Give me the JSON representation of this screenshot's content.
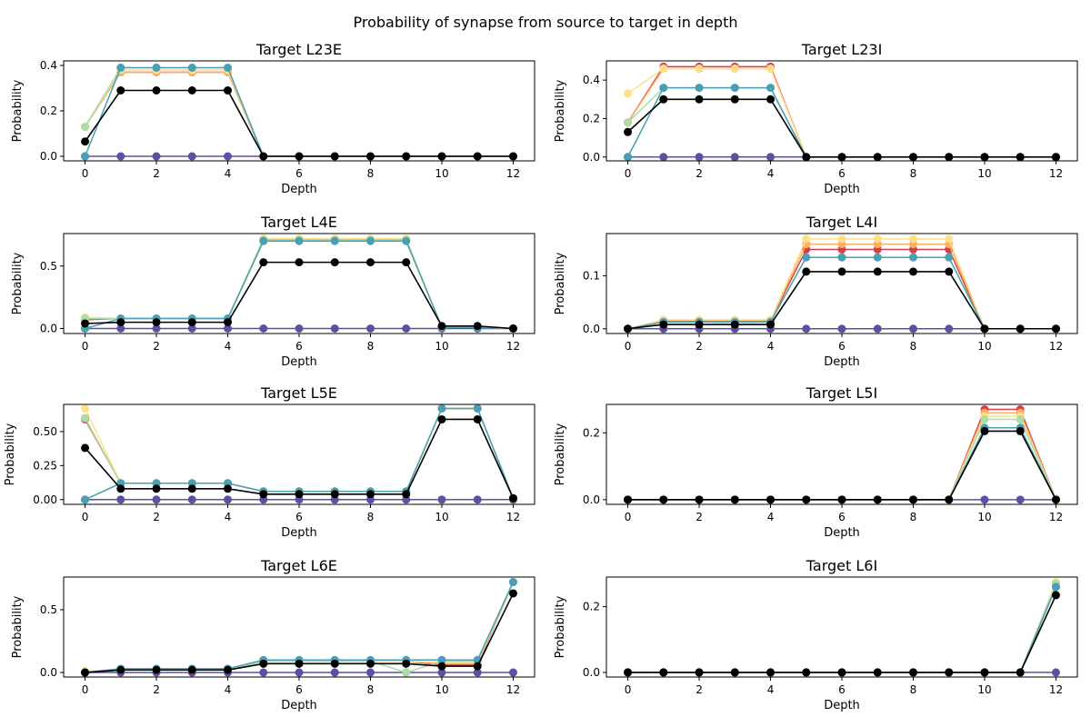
{
  "figure": {
    "title": "Probability of synapse from source to target in depth"
  },
  "colors": {
    "series": [
      "#5e4fa2",
      "#d53e4f",
      "#fdae61",
      "#fee08b",
      "#abdda4",
      "#4a9fb5",
      "#000000"
    ],
    "background": "#ffffff"
  },
  "chart_data": [
    {
      "type": "line",
      "title": "Target L23E",
      "xlabel": "Depth",
      "ylabel": "Probability",
      "x": [
        0,
        1,
        2,
        3,
        4,
        5,
        6,
        7,
        8,
        9,
        10,
        11,
        12
      ],
      "xticks": [
        "0",
        "2",
        "4",
        "6",
        "8",
        "10",
        "12"
      ],
      "ylim": [
        -0.02,
        0.42
      ],
      "yticks": [
        "0.0",
        "0.2",
        "0.4"
      ],
      "series": [
        {
          "values": [
            0,
            0,
            0,
            0,
            0,
            0,
            0,
            0,
            0,
            0,
            0,
            0,
            0
          ]
        },
        {
          "values": [
            0.13,
            0.37,
            0.37,
            0.37,
            0.37,
            0,
            0,
            0,
            0,
            0,
            0,
            0,
            0
          ]
        },
        {
          "values": [
            0.13,
            0.37,
            0.37,
            0.37,
            0.37,
            0,
            0,
            0,
            0,
            0,
            0,
            0,
            0
          ]
        },
        {
          "values": [
            0.13,
            0.38,
            0.38,
            0.38,
            0.38,
            0,
            0,
            0,
            0,
            0,
            0,
            0,
            0
          ]
        },
        {
          "values": [
            0.13,
            0.39,
            0.39,
            0.39,
            0.39,
            0,
            0,
            0,
            0,
            0,
            0,
            0,
            0
          ]
        },
        {
          "values": [
            0,
            0.39,
            0.39,
            0.39,
            0.39,
            0,
            0,
            0,
            0,
            0,
            0,
            0,
            0
          ]
        },
        {
          "values": [
            0.065,
            0.29,
            0.29,
            0.29,
            0.29,
            0,
            0,
            0,
            0,
            0,
            0,
            0,
            0
          ]
        }
      ]
    },
    {
      "type": "line",
      "title": "Target L23I",
      "xlabel": "Depth",
      "ylabel": "Probability",
      "x": [
        0,
        1,
        2,
        3,
        4,
        5,
        6,
        7,
        8,
        9,
        10,
        11,
        12
      ],
      "xticks": [
        "0",
        "2",
        "4",
        "6",
        "8",
        "10",
        "12"
      ],
      "ylim": [
        -0.02,
        0.5
      ],
      "yticks": [
        "0.0",
        "0.2",
        "0.4"
      ],
      "series": [
        {
          "values": [
            0,
            0,
            0,
            0,
            0,
            0,
            0,
            0,
            0,
            0,
            0,
            0,
            0
          ]
        },
        {
          "values": [
            0.18,
            0.47,
            0.47,
            0.47,
            0.47,
            0,
            0,
            0,
            0,
            0,
            0,
            0,
            0
          ]
        },
        {
          "values": [
            0.18,
            0.46,
            0.46,
            0.46,
            0.46,
            0,
            0,
            0,
            0,
            0,
            0,
            0,
            0
          ]
        },
        {
          "values": [
            0.33,
            0.46,
            0.46,
            0.46,
            0.46,
            0,
            0,
            0,
            0,
            0,
            0,
            0,
            0
          ]
        },
        {
          "values": [
            0.18,
            0.36,
            0.36,
            0.36,
            0.36,
            0,
            0,
            0,
            0,
            0,
            0,
            0,
            0
          ]
        },
        {
          "values": [
            0,
            0.36,
            0.36,
            0.36,
            0.36,
            0,
            0,
            0,
            0,
            0,
            0,
            0,
            0
          ]
        },
        {
          "values": [
            0.13,
            0.3,
            0.3,
            0.3,
            0.3,
            0,
            0,
            0,
            0,
            0,
            0,
            0,
            0
          ]
        }
      ]
    },
    {
      "type": "line",
      "title": "Target L4E",
      "xlabel": "Depth",
      "ylabel": "Probability",
      "x": [
        0,
        1,
        2,
        3,
        4,
        5,
        6,
        7,
        8,
        9,
        10,
        11,
        12
      ],
      "xticks": [
        "0",
        "2",
        "4",
        "6",
        "8",
        "10",
        "12"
      ],
      "ylim": [
        -0.04,
        0.76
      ],
      "yticks": [
        "0.0",
        "0.5"
      ],
      "series": [
        {
          "values": [
            0,
            0,
            0,
            0,
            0,
            0,
            0,
            0,
            0,
            0,
            0,
            0,
            0
          ]
        },
        {
          "values": [
            0.07,
            0.08,
            0.08,
            0.08,
            0.08,
            0.71,
            0.71,
            0.71,
            0.71,
            0.71,
            0.01,
            0.01,
            0
          ]
        },
        {
          "values": [
            0.08,
            0.08,
            0.08,
            0.08,
            0.08,
            0.71,
            0.71,
            0.71,
            0.71,
            0.71,
            0.01,
            0.01,
            0
          ]
        },
        {
          "values": [
            0.09,
            0.08,
            0.08,
            0.08,
            0.08,
            0.72,
            0.72,
            0.72,
            0.72,
            0.72,
            0.01,
            0.01,
            0
          ]
        },
        {
          "values": [
            0.08,
            0.08,
            0.08,
            0.08,
            0.08,
            0.71,
            0.71,
            0.71,
            0.71,
            0.71,
            0.01,
            0.01,
            0
          ]
        },
        {
          "values": [
            0,
            0.08,
            0.08,
            0.08,
            0.08,
            0.7,
            0.7,
            0.7,
            0.7,
            0.7,
            0.01,
            0.01,
            0
          ]
        },
        {
          "values": [
            0.04,
            0.05,
            0.05,
            0.05,
            0.05,
            0.53,
            0.53,
            0.53,
            0.53,
            0.53,
            0.02,
            0.02,
            0
          ]
        }
      ]
    },
    {
      "type": "line",
      "title": "Target L4I",
      "xlabel": "Depth",
      "ylabel": "Probability",
      "x": [
        0,
        1,
        2,
        3,
        4,
        5,
        6,
        7,
        8,
        9,
        10,
        11,
        12
      ],
      "xticks": [
        "0",
        "2",
        "4",
        "6",
        "8",
        "10",
        "12"
      ],
      "ylim": [
        -0.009,
        0.18
      ],
      "yticks": [
        "0.0",
        "0.1"
      ],
      "series": [
        {
          "values": [
            0,
            0,
            0,
            0,
            0,
            0,
            0,
            0,
            0,
            0,
            0,
            0,
            0
          ]
        },
        {
          "values": [
            0,
            0.015,
            0.015,
            0.015,
            0.015,
            0.15,
            0.15,
            0.15,
            0.15,
            0.15,
            0,
            0,
            0
          ]
        },
        {
          "values": [
            0,
            0.016,
            0.016,
            0.016,
            0.016,
            0.16,
            0.16,
            0.16,
            0.16,
            0.16,
            0,
            0,
            0
          ]
        },
        {
          "values": [
            0,
            0.017,
            0.017,
            0.017,
            0.017,
            0.17,
            0.17,
            0.17,
            0.17,
            0.17,
            0,
            0,
            0
          ]
        },
        {
          "values": [
            0,
            0.013,
            0.013,
            0.013,
            0.013,
            0.135,
            0.135,
            0.135,
            0.135,
            0.135,
            0,
            0,
            0
          ]
        },
        {
          "values": [
            0,
            0.013,
            0.013,
            0.013,
            0.013,
            0.135,
            0.135,
            0.135,
            0.135,
            0.135,
            0,
            0,
            0
          ]
        },
        {
          "values": [
            0,
            0.008,
            0.008,
            0.008,
            0.008,
            0.108,
            0.108,
            0.108,
            0.108,
            0.108,
            0,
            0,
            0
          ]
        }
      ]
    },
    {
      "type": "line",
      "title": "Target L5E",
      "xlabel": "Depth",
      "ylabel": "Probability",
      "x": [
        0,
        1,
        2,
        3,
        4,
        5,
        6,
        7,
        8,
        9,
        10,
        11,
        12
      ],
      "xticks": [
        "0",
        "2",
        "4",
        "6",
        "8",
        "10",
        "12"
      ],
      "ylim": [
        -0.035,
        0.7
      ],
      "yticks": [
        "0.00",
        "0.25",
        "0.50"
      ],
      "series": [
        {
          "values": [
            0,
            0,
            0,
            0,
            0,
            0,
            0,
            0,
            0,
            0,
            0,
            0,
            0
          ]
        },
        {
          "values": [
            0.59,
            0.12,
            0.12,
            0.12,
            0.12,
            0.06,
            0.06,
            0.06,
            0.06,
            0.06,
            0.67,
            0.67,
            0.01
          ]
        },
        {
          "values": [
            0.6,
            0.12,
            0.12,
            0.12,
            0.12,
            0.06,
            0.06,
            0.06,
            0.06,
            0.06,
            0.67,
            0.67,
            0.01
          ]
        },
        {
          "values": [
            0.67,
            0.12,
            0.12,
            0.12,
            0.12,
            0.06,
            0.06,
            0.06,
            0.06,
            0.06,
            0.67,
            0.67,
            0.01
          ]
        },
        {
          "values": [
            0.6,
            0.12,
            0.12,
            0.12,
            0.12,
            0.06,
            0.06,
            0.06,
            0.06,
            0.06,
            0.67,
            0.67,
            0.01
          ]
        },
        {
          "values": [
            0,
            0.12,
            0.12,
            0.12,
            0.12,
            0.06,
            0.06,
            0.06,
            0.06,
            0.06,
            0.67,
            0.67,
            0.01
          ]
        },
        {
          "values": [
            0.38,
            0.08,
            0.08,
            0.08,
            0.08,
            0.04,
            0.04,
            0.04,
            0.04,
            0.04,
            0.59,
            0.59,
            0.01
          ]
        }
      ]
    },
    {
      "type": "line",
      "title": "Target L5I",
      "xlabel": "Depth",
      "ylabel": "Probability",
      "x": [
        0,
        1,
        2,
        3,
        4,
        5,
        6,
        7,
        8,
        9,
        10,
        11,
        12
      ],
      "xticks": [
        "0",
        "2",
        "4",
        "6",
        "8",
        "10",
        "12"
      ],
      "ylim": [
        -0.014,
        0.285
      ],
      "yticks": [
        "0.0",
        "0.2"
      ],
      "series": [
        {
          "values": [
            0,
            0,
            0,
            0,
            0,
            0,
            0,
            0,
            0,
            0,
            0,
            0,
            0
          ]
        },
        {
          "values": [
            0,
            0,
            0,
            0,
            0,
            0,
            0,
            0,
            0,
            0,
            0.27,
            0.27,
            0
          ]
        },
        {
          "values": [
            0,
            0,
            0,
            0,
            0,
            0,
            0,
            0,
            0,
            0,
            0.26,
            0.26,
            0
          ]
        },
        {
          "values": [
            0,
            0,
            0,
            0,
            0,
            0,
            0,
            0,
            0,
            0,
            0.25,
            0.25,
            0
          ]
        },
        {
          "values": [
            0,
            0,
            0,
            0,
            0,
            0,
            0,
            0,
            0,
            0,
            0.24,
            0.24,
            0
          ]
        },
        {
          "values": [
            0,
            0,
            0,
            0,
            0,
            0,
            0,
            0,
            0,
            0,
            0.215,
            0.215,
            0
          ]
        },
        {
          "values": [
            0,
            0,
            0,
            0,
            0,
            0,
            0,
            0,
            0,
            0,
            0.205,
            0.205,
            0
          ]
        }
      ]
    },
    {
      "type": "line",
      "title": "Target L6E",
      "xlabel": "Depth",
      "ylabel": "Probability",
      "x": [
        0,
        1,
        2,
        3,
        4,
        5,
        6,
        7,
        8,
        9,
        10,
        11,
        12
      ],
      "xticks": [
        "0",
        "2",
        "4",
        "6",
        "8",
        "10",
        "12"
      ],
      "ylim": [
        -0.036,
        0.76
      ],
      "yticks": [
        "0.0",
        "0.5"
      ],
      "series": [
        {
          "values": [
            0,
            0,
            0,
            0,
            0,
            0,
            0,
            0,
            0,
            0,
            0,
            0,
            0
          ]
        },
        {
          "values": [
            0,
            0.02,
            0.02,
            0.02,
            0.02,
            0.09,
            0.09,
            0.09,
            0.09,
            0.09,
            0.06,
            0.06,
            0.72
          ]
        },
        {
          "values": [
            0.01,
            0.02,
            0.02,
            0.02,
            0.02,
            0.09,
            0.09,
            0.09,
            0.09,
            0.09,
            0.07,
            0.07,
            0.72
          ]
        },
        {
          "values": [
            0.01,
            0.02,
            0.02,
            0.02,
            0.02,
            0.09,
            0.09,
            0.09,
            0.09,
            0.09,
            0.08,
            0.08,
            0.72
          ]
        },
        {
          "values": [
            0,
            0.02,
            0.02,
            0.02,
            0.02,
            0.09,
            0.09,
            0.09,
            0.09,
            0.0,
            0.09,
            0.09,
            0.72
          ]
        },
        {
          "values": [
            0,
            0.03,
            0.03,
            0.03,
            0.03,
            0.1,
            0.1,
            0.1,
            0.1,
            0.1,
            0.1,
            0.1,
            0.72
          ]
        },
        {
          "values": [
            0,
            0.02,
            0.02,
            0.02,
            0.02,
            0.07,
            0.07,
            0.07,
            0.07,
            0.07,
            0.05,
            0.05,
            0.63
          ]
        }
      ]
    },
    {
      "type": "line",
      "title": "Target L6I",
      "xlabel": "Depth",
      "ylabel": "Probability",
      "x": [
        0,
        1,
        2,
        3,
        4,
        5,
        6,
        7,
        8,
        9,
        10,
        11,
        12
      ],
      "xticks": [
        "0",
        "2",
        "4",
        "6",
        "8",
        "10",
        "12"
      ],
      "ylim": [
        -0.014,
        0.29
      ],
      "yticks": [
        "0.0",
        "0.2"
      ],
      "series": [
        {
          "values": [
            0,
            0,
            0,
            0,
            0,
            0,
            0,
            0,
            0,
            0,
            0,
            0,
            0
          ]
        },
        {
          "values": [
            0,
            0,
            0,
            0,
            0,
            0,
            0,
            0,
            0,
            0,
            0,
            0,
            0.26
          ]
        },
        {
          "values": [
            0,
            0,
            0,
            0,
            0,
            0,
            0,
            0,
            0,
            0,
            0,
            0,
            0.27
          ]
        },
        {
          "values": [
            0,
            0,
            0,
            0,
            0,
            0,
            0,
            0,
            0,
            0,
            0,
            0,
            0.275
          ]
        },
        {
          "values": [
            0,
            0,
            0,
            0,
            0,
            0,
            0,
            0,
            0,
            0,
            0,
            0,
            0.27
          ]
        },
        {
          "values": [
            0,
            0,
            0,
            0,
            0,
            0,
            0,
            0,
            0,
            0,
            0,
            0,
            0.26
          ]
        },
        {
          "values": [
            0,
            0,
            0,
            0,
            0,
            0,
            0,
            0,
            0,
            0,
            0,
            0,
            0.235
          ]
        }
      ]
    }
  ]
}
